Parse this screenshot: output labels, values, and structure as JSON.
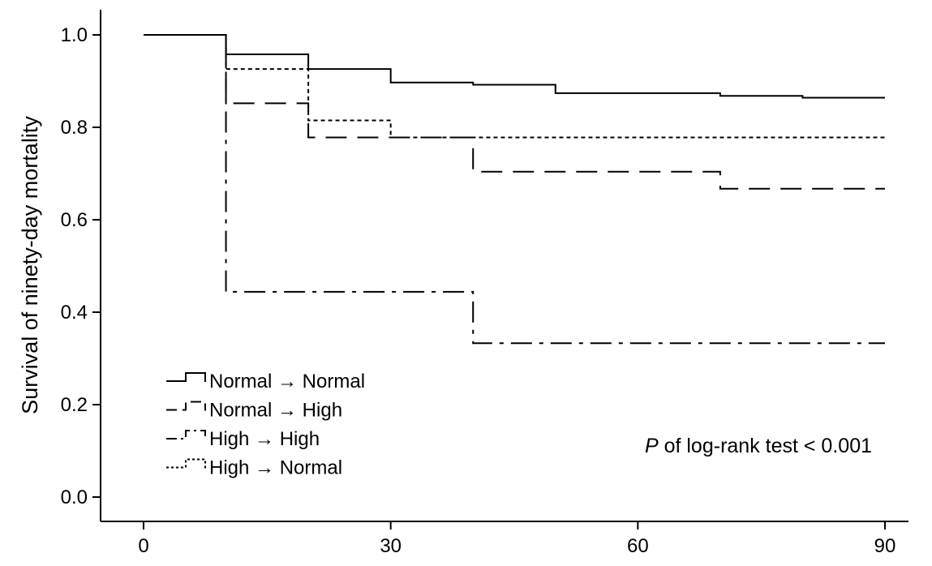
{
  "chart_data": {
    "type": "line",
    "title": "",
    "xlabel": "",
    "ylabel": "Survival of ninety-day mortality",
    "xlim": [
      0,
      90
    ],
    "ylim": [
      0.0,
      1.0
    ],
    "x_ticks": [
      0,
      30,
      60,
      90
    ],
    "y_ticks": [
      "0.0",
      "0.2",
      "0.4",
      "0.6",
      "0.8",
      "1.0"
    ],
    "grid": false,
    "legend_position": "bottom-left",
    "series": [
      {
        "name": "Normal → Normal",
        "style": "solid",
        "steps": [
          [
            0,
            1.0
          ],
          [
            10,
            0.958
          ],
          [
            20,
            0.926
          ],
          [
            30,
            0.897
          ],
          [
            40,
            0.892
          ],
          [
            50,
            0.874
          ],
          [
            70,
            0.868
          ],
          [
            80,
            0.864
          ],
          [
            90,
            0.864
          ]
        ]
      },
      {
        "name": "Normal → High",
        "style": "dashed",
        "steps": [
          [
            0,
            1.0
          ],
          [
            10,
            0.852
          ],
          [
            20,
            0.778
          ],
          [
            40,
            0.704
          ],
          [
            70,
            0.667
          ],
          [
            90,
            0.667
          ]
        ]
      },
      {
        "name": "High → High",
        "style": "dash-dot",
        "steps": [
          [
            0,
            1.0
          ],
          [
            10,
            0.444
          ],
          [
            40,
            0.333
          ],
          [
            90,
            0.333
          ]
        ]
      },
      {
        "name": "High → Normal",
        "style": "dotted",
        "steps": [
          [
            0,
            1.0
          ],
          [
            10,
            0.926
          ],
          [
            20,
            0.815
          ],
          [
            30,
            0.778
          ],
          [
            90,
            0.778
          ]
        ]
      }
    ],
    "annotation": {
      "italic": "P",
      "rest": " of log-rank test < 0.001"
    }
  }
}
